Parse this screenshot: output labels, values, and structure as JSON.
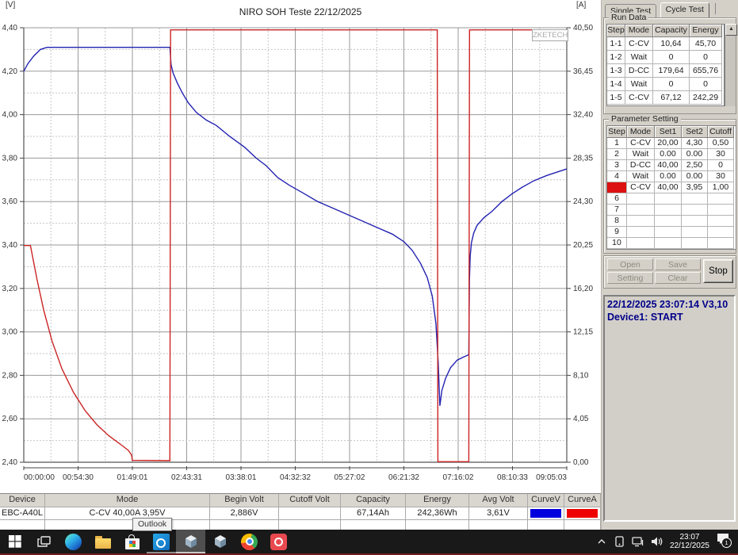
{
  "chart_data": {
    "type": "line",
    "title": "NIRO SOH Teste 22/12/2025",
    "watermark": "ZKETECH",
    "x_max_seconds": 32703,
    "x_tick_labels": [
      "00:00:00",
      "00:54:30",
      "01:49:01",
      "02:43:31",
      "03:38:01",
      "04:32:32",
      "05:27:02",
      "06:21:32",
      "07:16:02",
      "08:10:33",
      "09:05:03"
    ],
    "left_axis": {
      "label": "[V]",
      "min": 2.4,
      "max": 4.4,
      "tick_labels": [
        "4,40",
        "4,20",
        "4,00",
        "3,80",
        "3,60",
        "3,40",
        "3,20",
        "3,00",
        "2,80",
        "2,60",
        "2,40"
      ]
    },
    "right_axis": {
      "label": "[A]",
      "min": 0.0,
      "max": 40.5,
      "tick_labels": [
        "40,50",
        "36,45",
        "32,40",
        "28,35",
        "24,30",
        "20,25",
        "16,20",
        "12,15",
        "8,10",
        "4,05",
        "0,00"
      ]
    },
    "grid": true,
    "series": [
      {
        "name": "CurveV",
        "axis": "left",
        "color": "#2222b2",
        "points": [
          [
            0,
            4.2
          ],
          [
            250,
            4.235
          ],
          [
            600,
            4.27
          ],
          [
            1000,
            4.3
          ],
          [
            1400,
            4.31
          ],
          [
            8800,
            4.31
          ],
          [
            8870,
            4.23
          ],
          [
            9000,
            4.19
          ],
          [
            9250,
            4.145
          ],
          [
            9550,
            4.1
          ],
          [
            9900,
            4.055
          ],
          [
            10400,
            4.01
          ],
          [
            11000,
            3.975
          ],
          [
            11600,
            3.95
          ],
          [
            12400,
            3.9
          ],
          [
            13300,
            3.85
          ],
          [
            14000,
            3.8
          ],
          [
            14600,
            3.765
          ],
          [
            15300,
            3.71
          ],
          [
            16000,
            3.675
          ],
          [
            16800,
            3.64
          ],
          [
            17700,
            3.6
          ],
          [
            18600,
            3.57
          ],
          [
            19500,
            3.54
          ],
          [
            20400,
            3.51
          ],
          [
            21300,
            3.48
          ],
          [
            22200,
            3.45
          ],
          [
            22900,
            3.415
          ],
          [
            23400,
            3.375
          ],
          [
            23900,
            3.315
          ],
          [
            24300,
            3.25
          ],
          [
            24600,
            3.165
          ],
          [
            24820,
            3.04
          ],
          [
            24960,
            2.86
          ],
          [
            25060,
            2.66
          ],
          [
            25180,
            2.73
          ],
          [
            25400,
            2.785
          ],
          [
            25700,
            2.835
          ],
          [
            26100,
            2.87
          ],
          [
            26500,
            2.885
          ],
          [
            26800,
            2.895
          ],
          [
            26840,
            3.24
          ],
          [
            26890,
            3.35
          ],
          [
            26960,
            3.41
          ],
          [
            27100,
            3.455
          ],
          [
            27300,
            3.49
          ],
          [
            27700,
            3.525
          ],
          [
            28200,
            3.555
          ],
          [
            28800,
            3.6
          ],
          [
            29400,
            3.635
          ],
          [
            30000,
            3.665
          ],
          [
            30700,
            3.695
          ],
          [
            31500,
            3.72
          ],
          [
            32700,
            3.75
          ]
        ]
      },
      {
        "name": "CurveA",
        "axis": "right",
        "color": "#cc2424",
        "points": [
          [
            0,
            20.2
          ],
          [
            400,
            20.2
          ],
          [
            800,
            17.0
          ],
          [
            1200,
            14.2
          ],
          [
            1700,
            11.3
          ],
          [
            2300,
            8.7
          ],
          [
            3000,
            6.5
          ],
          [
            3700,
            4.8
          ],
          [
            4400,
            3.5
          ],
          [
            5100,
            2.5
          ],
          [
            5800,
            1.7
          ],
          [
            6300,
            1.1
          ],
          [
            6480,
            0.7
          ],
          [
            6510,
            0.5
          ],
          [
            6530,
            0.18
          ],
          [
            8800,
            0.15
          ],
          [
            8840,
            40.3
          ],
          [
            24900,
            40.3
          ],
          [
            24940,
            0.05
          ],
          [
            26800,
            0.05
          ],
          [
            26845,
            40.3
          ],
          [
            32703,
            40.3
          ]
        ]
      }
    ]
  },
  "tabs": [
    {
      "label": "Single Test",
      "active": false
    },
    {
      "label": "Cycle Test",
      "active": true
    }
  ],
  "run_data": {
    "group_label": "Run Data",
    "headers": [
      "Step",
      "Mode",
      "Capacity",
      "Energy"
    ],
    "rows": [
      [
        "1-1",
        "C-CV",
        "10,64",
        "45,70"
      ],
      [
        "1-2",
        "Wait",
        "0",
        "0"
      ],
      [
        "1-3",
        "D-CC",
        "179,64",
        "655,76"
      ],
      [
        "1-4",
        "Wait",
        "0",
        "0"
      ],
      [
        "1-5",
        "C-CV",
        "67,12",
        "242,29"
      ]
    ]
  },
  "parameter_setting": {
    "group_label": "Parameter Setting",
    "headers": [
      "Step",
      "Mode",
      "Set1",
      "Set2",
      "Cutoff"
    ],
    "active_step": "5",
    "rows": [
      [
        "1",
        "C-CV",
        "20,00",
        "4,30",
        "0,50"
      ],
      [
        "2",
        "Wait",
        "0.00",
        "0.00",
        "30"
      ],
      [
        "3",
        "D-CC",
        "40,00",
        "2,50",
        "0"
      ],
      [
        "4",
        "Wait",
        "0.00",
        "0.00",
        "30"
      ],
      [
        "5",
        "C-CV",
        "40,00",
        "3,95",
        "1,00"
      ],
      [
        "6",
        "",
        "",
        "",
        ""
      ],
      [
        "7",
        "",
        "",
        "",
        ""
      ],
      [
        "8",
        "",
        "",
        "",
        ""
      ],
      [
        "9",
        "",
        "",
        "",
        ""
      ],
      [
        "10",
        "",
        "",
        "",
        ""
      ]
    ]
  },
  "buttons": {
    "open": "Open",
    "save": "Save",
    "setting": "Setting",
    "clear": "Clear",
    "stop": "Stop"
  },
  "log": {
    "line1": "22/12/2025 23:07:14  V3,10",
    "line2": "Device1: START"
  },
  "bottom_table": {
    "headers": [
      "Device",
      "Mode",
      "Begin Volt",
      "Cutoff Volt",
      "Capacity",
      "Energy",
      "Avg Volt",
      "CurveV",
      "CurveA"
    ],
    "row": [
      "EBC-A40L",
      "C-CV  40,00A  3,95V",
      "2,886V",
      "",
      "67,14Ah",
      "242,36Wh",
      "3,61V",
      {
        "swatch": "#0000dd"
      },
      {
        "swatch": "#ee0000"
      }
    ],
    "curve_v_color": "#0000dd",
    "curve_a_color": "#ee0000"
  },
  "tooltip": {
    "text": "Outlook"
  },
  "taskbar": {
    "time": "23:07",
    "date": "22/12/2025",
    "notification_count": "1"
  }
}
